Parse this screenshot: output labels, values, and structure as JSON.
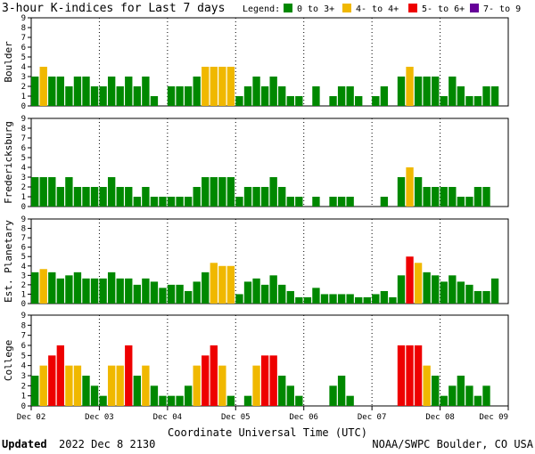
{
  "chart_data": {
    "type": "bar",
    "title": "3-hour K-indices for Last 7 days",
    "legend": {
      "label": "Legend:",
      "items": [
        {
          "label": "0 to 3+",
          "color": "#008800"
        },
        {
          "label": "4- to 4+",
          "color": "#f0b800"
        },
        {
          "label": "5- to 6+",
          "color": "#ee0000"
        },
        {
          "label": "7- to 9",
          "color": "#660099"
        }
      ]
    },
    "ylim": [
      0,
      9
    ],
    "y_ticks": [
      "0",
      "1",
      "2",
      "3",
      "4",
      "5",
      "6",
      "7",
      "8",
      "9"
    ],
    "x_ticks": [
      "Dec 02",
      "Dec 03",
      "Dec 04",
      "Dec 05",
      "Dec 06",
      "Dec 07",
      "Dec 08",
      "Dec 09"
    ],
    "xlabel": "Coordinate Universal Time (UTC)",
    "panels": [
      {
        "name": "Boulder",
        "values": [
          3,
          4,
          3,
          3,
          2,
          3,
          3,
          2,
          2,
          3,
          2,
          3,
          2,
          3,
          1,
          0,
          2,
          2,
          2,
          3,
          4,
          4,
          4,
          4,
          1,
          2,
          3,
          2,
          3,
          2,
          1,
          1,
          0,
          2,
          0,
          1,
          2,
          2,
          1,
          0,
          1,
          2,
          0,
          3,
          4,
          3,
          3,
          3,
          1,
          3,
          2,
          1,
          1,
          2,
          2,
          0
        ]
      },
      {
        "name": "Fredericksburg",
        "values": [
          3,
          3,
          3,
          2,
          3,
          2,
          2,
          2,
          2,
          3,
          2,
          2,
          1,
          2,
          1,
          1,
          1,
          1,
          1,
          2,
          3,
          3,
          3,
          3,
          1,
          2,
          2,
          2,
          3,
          2,
          1,
          1,
          0,
          1,
          0,
          1,
          1,
          1,
          0,
          0,
          0,
          1,
          0,
          3,
          4,
          3,
          2,
          2,
          2,
          2,
          1,
          1,
          2,
          2,
          0,
          0
        ]
      },
      {
        "name": "Est. Planetary",
        "values": [
          3.33,
          3.67,
          3.33,
          2.67,
          3,
          3.33,
          2.67,
          2.67,
          2.67,
          3.33,
          2.67,
          2.67,
          2,
          2.67,
          2.33,
          1.67,
          2,
          2,
          1.33,
          2.33,
          3.33,
          4.33,
          4,
          4,
          1,
          2.33,
          2.67,
          2,
          3,
          2,
          1.33,
          0.67,
          0.67,
          1.67,
          1,
          1,
          1,
          1,
          0.67,
          0.67,
          1,
          1.33,
          0.67,
          3,
          5,
          4.33,
          3.33,
          3,
          2.33,
          3,
          2.33,
          2,
          1.33,
          1.33,
          2.67,
          0
        ]
      },
      {
        "name": "College",
        "values": [
          3,
          4,
          5,
          6,
          4,
          4,
          3,
          2,
          1,
          4,
          4,
          6,
          3,
          4,
          2,
          1,
          1,
          1,
          2,
          4,
          5,
          6,
          4,
          1,
          0,
          1,
          4,
          5,
          5,
          3,
          2,
          1,
          0,
          0,
          0,
          2,
          3,
          1,
          0,
          0,
          0,
          0,
          0,
          6,
          6,
          6,
          4,
          3,
          1,
          2,
          3,
          2,
          1,
          2,
          0,
          0
        ]
      }
    ]
  },
  "footer": {
    "updated_label": "Updated",
    "updated_time": "2022 Dec  8 2130",
    "source": "NOAA/SWPC Boulder, CO USA"
  }
}
